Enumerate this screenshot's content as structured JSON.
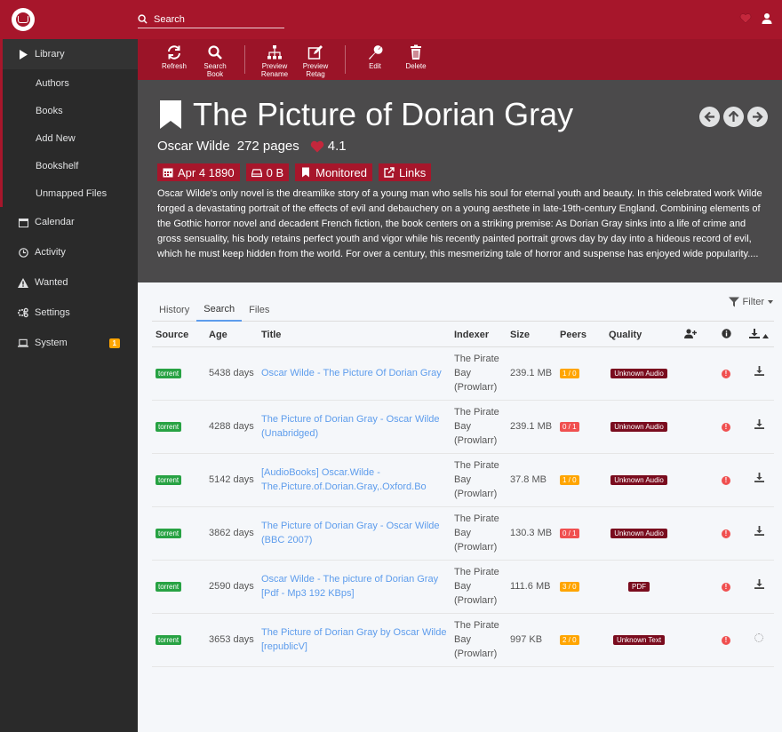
{
  "header": {
    "search_placeholder": "Search",
    "colors": {
      "brand": "#a7162b"
    }
  },
  "sidebar": {
    "items": [
      {
        "label": "Library",
        "icon": "play-icon"
      },
      {
        "label": "Authors"
      },
      {
        "label": "Books"
      },
      {
        "label": "Add New"
      },
      {
        "label": "Bookshelf"
      },
      {
        "label": "Unmapped Files"
      },
      {
        "label": "Calendar",
        "icon": "calendar-icon"
      },
      {
        "label": "Activity",
        "icon": "clock-icon"
      },
      {
        "label": "Wanted",
        "icon": "warning-icon"
      },
      {
        "label": "Settings",
        "icon": "gears-icon"
      },
      {
        "label": "System",
        "icon": "laptop-icon",
        "badge": "1"
      }
    ]
  },
  "toolbar": {
    "refresh": "Refresh",
    "search_book_1": "Search",
    "search_book_2": "Book",
    "preview_rename_1": "Preview",
    "preview_rename_2": "Rename",
    "preview_retag_1": "Preview",
    "preview_retag_2": "Retag",
    "edit": "Edit",
    "delete": "Delete"
  },
  "book": {
    "title": "The Picture of Dorian Gray",
    "author": "Oscar Wilde",
    "pages": "272 pages",
    "rating": "4.1",
    "release_date": "Apr 4 1890",
    "size": "0 B",
    "monitored": "Monitored",
    "links": "Links",
    "overview": "Oscar Wilde's only novel is the dreamlike story of a young man who sells his soul for eternal youth and beauty. In this celebrated work Wilde forged a devastating portrait of the effects of evil and debauchery on a young aesthete in late-19th-century England. Combining elements of the Gothic horror novel and decadent French fiction, the book centers on a striking premise: As Dorian Gray sinks into a life of crime and gross sensuality, his body retains perfect youth and vigor while his recently painted portrait grows day by day into a hideous record of evil, which he must keep hidden from the world. For over a century, this mesmerizing tale of horror and suspense has enjoyed wide popularity...."
  },
  "tabs": {
    "history": "History",
    "search": "Search",
    "files": "Files",
    "filter": "Filter"
  },
  "columns": {
    "source": "Source",
    "age": "Age",
    "title": "Title",
    "indexer": "Indexer",
    "size": "Size",
    "peers": "Peers",
    "quality": "Quality"
  },
  "rows": [
    {
      "source": "torrent",
      "age": "5438 days",
      "title": "Oscar Wilde - The Picture Of Dorian Gray",
      "indexer": "The Pirate Bay (Prowlarr)",
      "size": "239.1 MB",
      "peers": "1 / 0",
      "peers_color": "orange",
      "quality": "Unknown Audio"
    },
    {
      "source": "torrent",
      "age": "4288 days",
      "title": "The Picture of Dorian Gray - Oscar Wilde (Unabridged)",
      "indexer": "The Pirate Bay (Prowlarr)",
      "size": "239.1 MB",
      "peers": "0 / 1",
      "peers_color": "red",
      "quality": "Unknown Audio"
    },
    {
      "source": "torrent",
      "age": "5142 days",
      "title": "[AudioBooks] Oscar.Wilde - The.Picture.of.Dorian.Gray,.Oxford.Bo",
      "indexer": "The Pirate Bay (Prowlarr)",
      "size": "37.8 MB",
      "peers": "1 / 0",
      "peers_color": "orange",
      "quality": "Unknown Audio"
    },
    {
      "source": "torrent",
      "age": "3862 days",
      "title": "The Picture of Dorian Gray - Oscar Wilde (BBC 2007)",
      "indexer": "The Pirate Bay (Prowlarr)",
      "size": "130.3 MB",
      "peers": "0 / 1",
      "peers_color": "red",
      "quality": "Unknown Audio"
    },
    {
      "source": "torrent",
      "age": "2590 days",
      "title": "Oscar Wilde - The picture of Dorian Gray [Pdf - Mp3 192 KBps]",
      "indexer": "The Pirate Bay (Prowlarr)",
      "size": "111.6 MB",
      "peers": "3 / 0",
      "peers_color": "orange",
      "quality": "PDF"
    },
    {
      "source": "torrent",
      "age": "3653 days",
      "title": "The Picture of Dorian Gray by Oscar Wilde [republicV]",
      "indexer": "The Pirate Bay (Prowlarr)",
      "size": "997 KB",
      "peers": "2 / 0",
      "peers_color": "orange",
      "quality": "Unknown Text"
    }
  ]
}
